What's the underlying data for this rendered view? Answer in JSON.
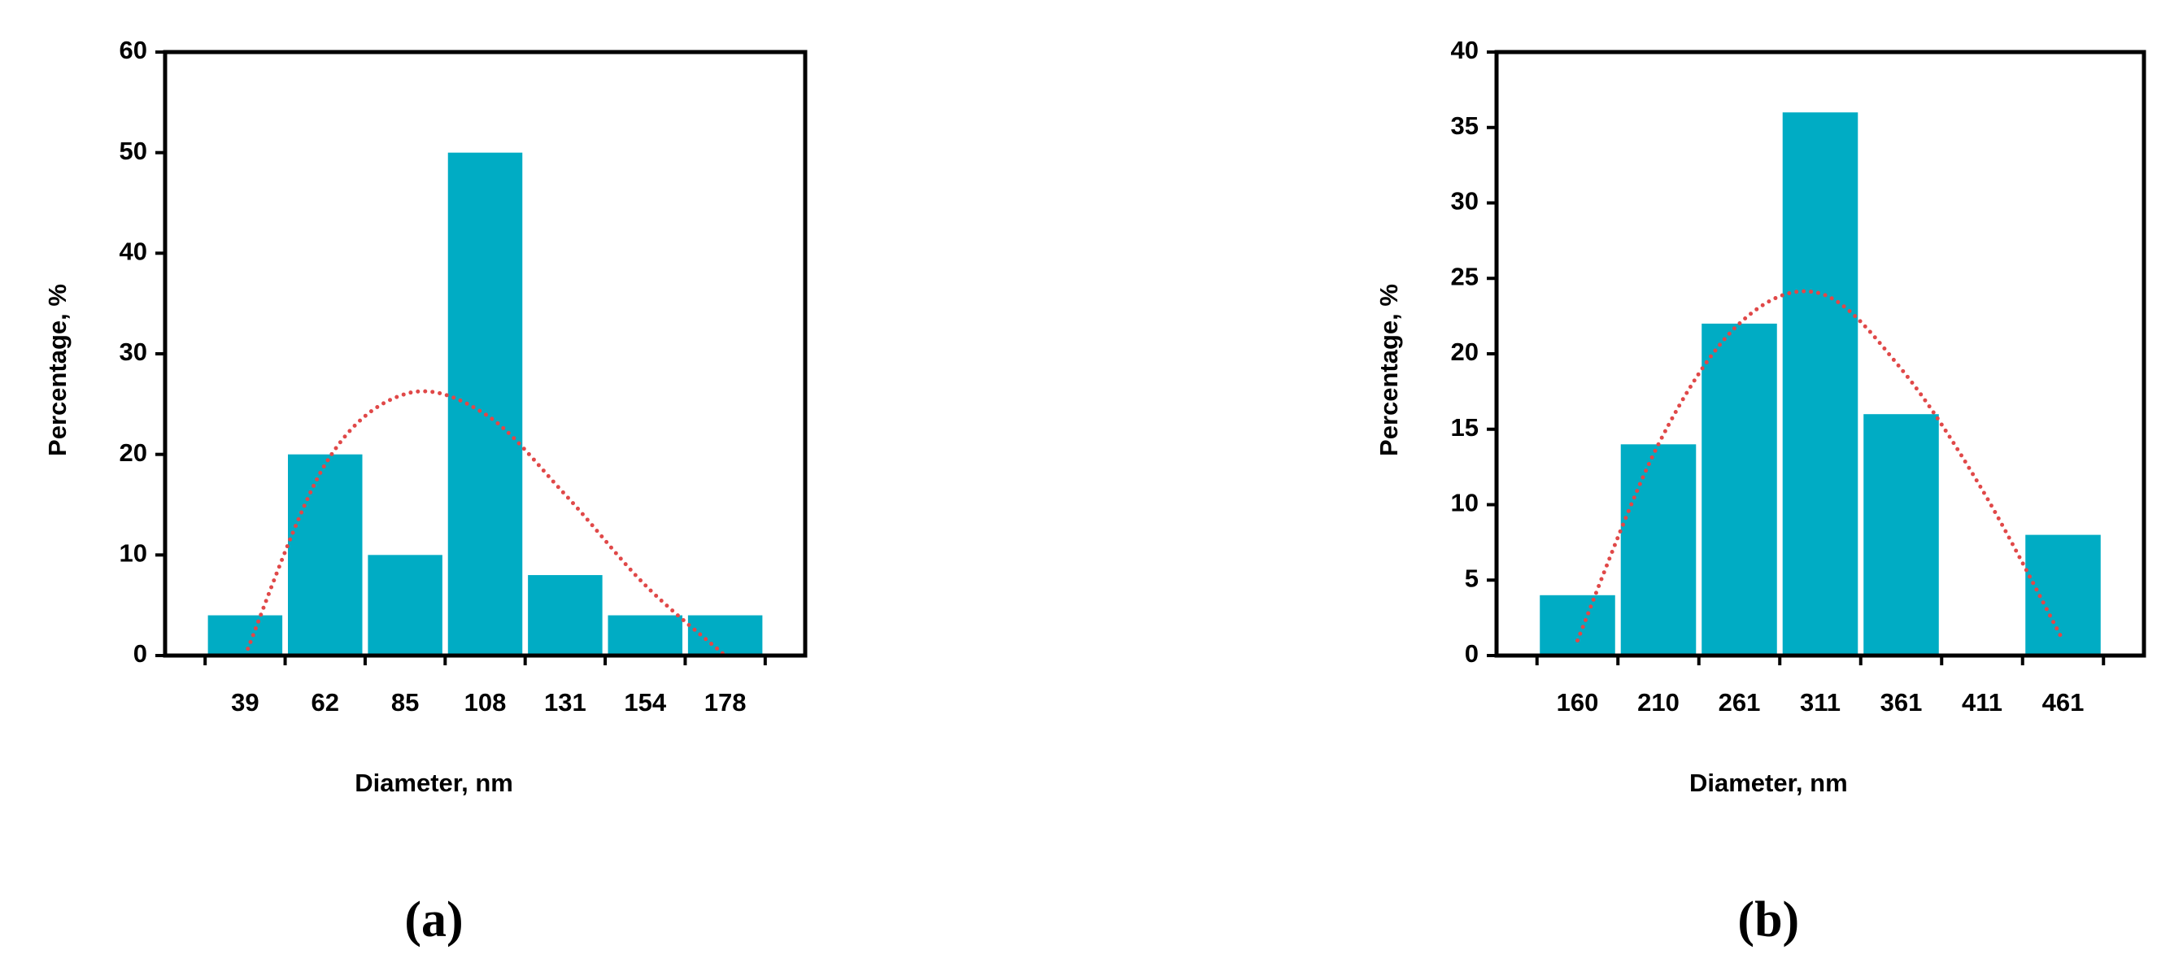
{
  "chart_data": [
    {
      "type": "bar",
      "panel_label": "(a)",
      "x_label": "Diameter, nm",
      "y_label": "Percentage, %",
      "categories": [
        "39",
        "62",
        "85",
        "108",
        "131",
        "154",
        "178"
      ],
      "values": [
        4,
        20,
        10,
        50,
        8,
        4,
        4
      ],
      "color": "#00acc4",
      "trendline": {
        "color": "#e04848",
        "values": [
          0,
          19,
          26,
          24,
          16,
          7,
          0
        ]
      },
      "ylim": [
        0,
        60
      ],
      "yticks": [
        0,
        10,
        20,
        30,
        40,
        50,
        60
      ]
    },
    {
      "type": "bar",
      "panel_label": "(b)",
      "x_label": "Diameter, nm",
      "y_label": "Percentage, %",
      "categories": [
        "160",
        "210",
        "261",
        "311",
        "361",
        "411",
        "461"
      ],
      "values": [
        4,
        14,
        22,
        36,
        16,
        0,
        8
      ],
      "color": "#00acc4",
      "trendline": {
        "color": "#e04848",
        "values": [
          1,
          14,
          22,
          24,
          19,
          11,
          1
        ]
      },
      "ylim": [
        0,
        40
      ],
      "yticks": [
        0,
        5,
        10,
        15,
        20,
        25,
        30,
        35,
        40
      ]
    }
  ]
}
